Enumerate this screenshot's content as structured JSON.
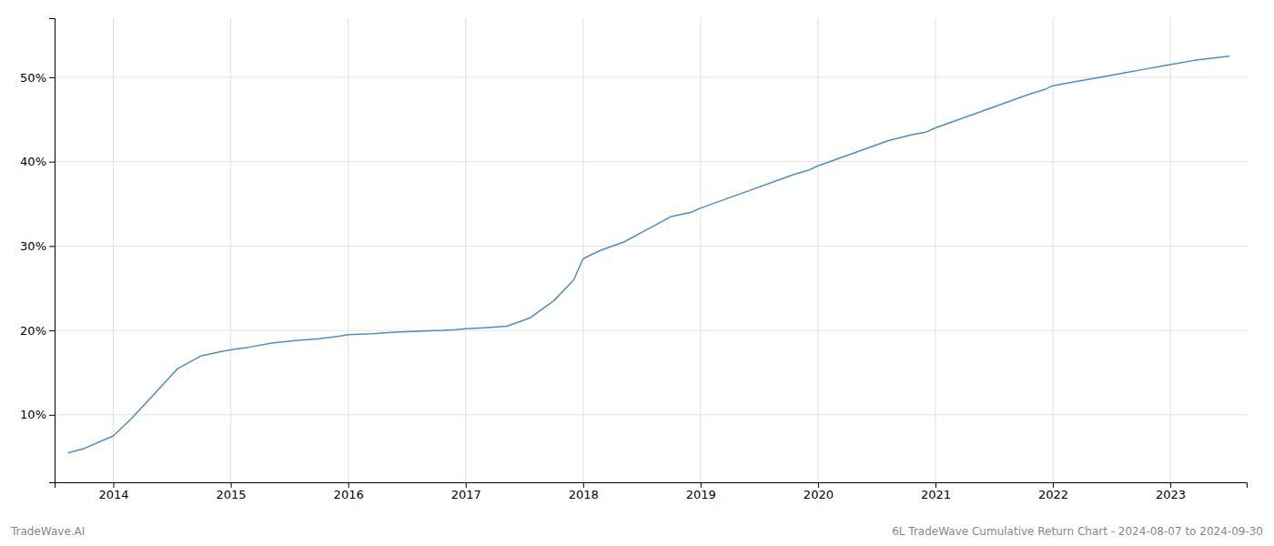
{
  "chart_data": {
    "type": "line",
    "x": [
      2013.62,
      2013.75,
      2014.0,
      2014.15,
      2014.35,
      2014.55,
      2014.75,
      2014.92,
      2015.0,
      2015.15,
      2015.35,
      2015.55,
      2015.75,
      2015.92,
      2016.0,
      2016.2,
      2016.4,
      2016.6,
      2016.8,
      2016.92,
      2017.0,
      2017.15,
      2017.35,
      2017.55,
      2017.75,
      2017.92,
      2018.0,
      2018.15,
      2018.35,
      2018.55,
      2018.75,
      2018.92,
      2019.0,
      2019.2,
      2019.4,
      2019.6,
      2019.8,
      2019.92,
      2020.0,
      2020.2,
      2020.4,
      2020.6,
      2020.8,
      2020.92,
      2021.0,
      2021.2,
      2021.4,
      2021.6,
      2021.8,
      2021.92,
      2022.0,
      2022.2,
      2022.4,
      2022.6,
      2022.8,
      2022.92,
      2023.0,
      2023.2,
      2023.5
    ],
    "values": [
      5.5,
      6.0,
      7.5,
      9.5,
      12.5,
      15.5,
      17.0,
      17.5,
      17.7,
      18.0,
      18.5,
      18.8,
      19.0,
      19.3,
      19.5,
      19.6,
      19.8,
      19.9,
      20.0,
      20.1,
      20.2,
      20.3,
      20.5,
      21.5,
      23.5,
      26.0,
      28.5,
      29.5,
      30.5,
      32.0,
      33.5,
      34.0,
      34.5,
      35.5,
      36.5,
      37.5,
      38.5,
      39.0,
      39.5,
      40.5,
      41.5,
      42.5,
      43.2,
      43.5,
      44.0,
      45.0,
      46.0,
      47.0,
      48.0,
      48.5,
      49.0,
      49.5,
      50.0,
      50.5,
      51.0,
      51.3,
      51.5,
      52.0,
      52.5
    ],
    "color": "#4a90c4",
    "xlim": [
      2013.5,
      2023.65
    ],
    "ylim": [
      2,
      57
    ],
    "xticks": [
      2014,
      2015,
      2016,
      2017,
      2018,
      2019,
      2020,
      2021,
      2022,
      2023
    ],
    "yticks": [
      {
        "value": 10,
        "label": "10%"
      },
      {
        "value": 20,
        "label": "20%"
      },
      {
        "value": 30,
        "label": "30%"
      },
      {
        "value": 40,
        "label": "40%"
      },
      {
        "value": 50,
        "label": "50%"
      }
    ],
    "grid": true,
    "annotations": [
      "TradeWave.AI",
      "6L TradeWave Cumulative Return Chart - 2024-08-07 to 2024-09-30"
    ]
  }
}
